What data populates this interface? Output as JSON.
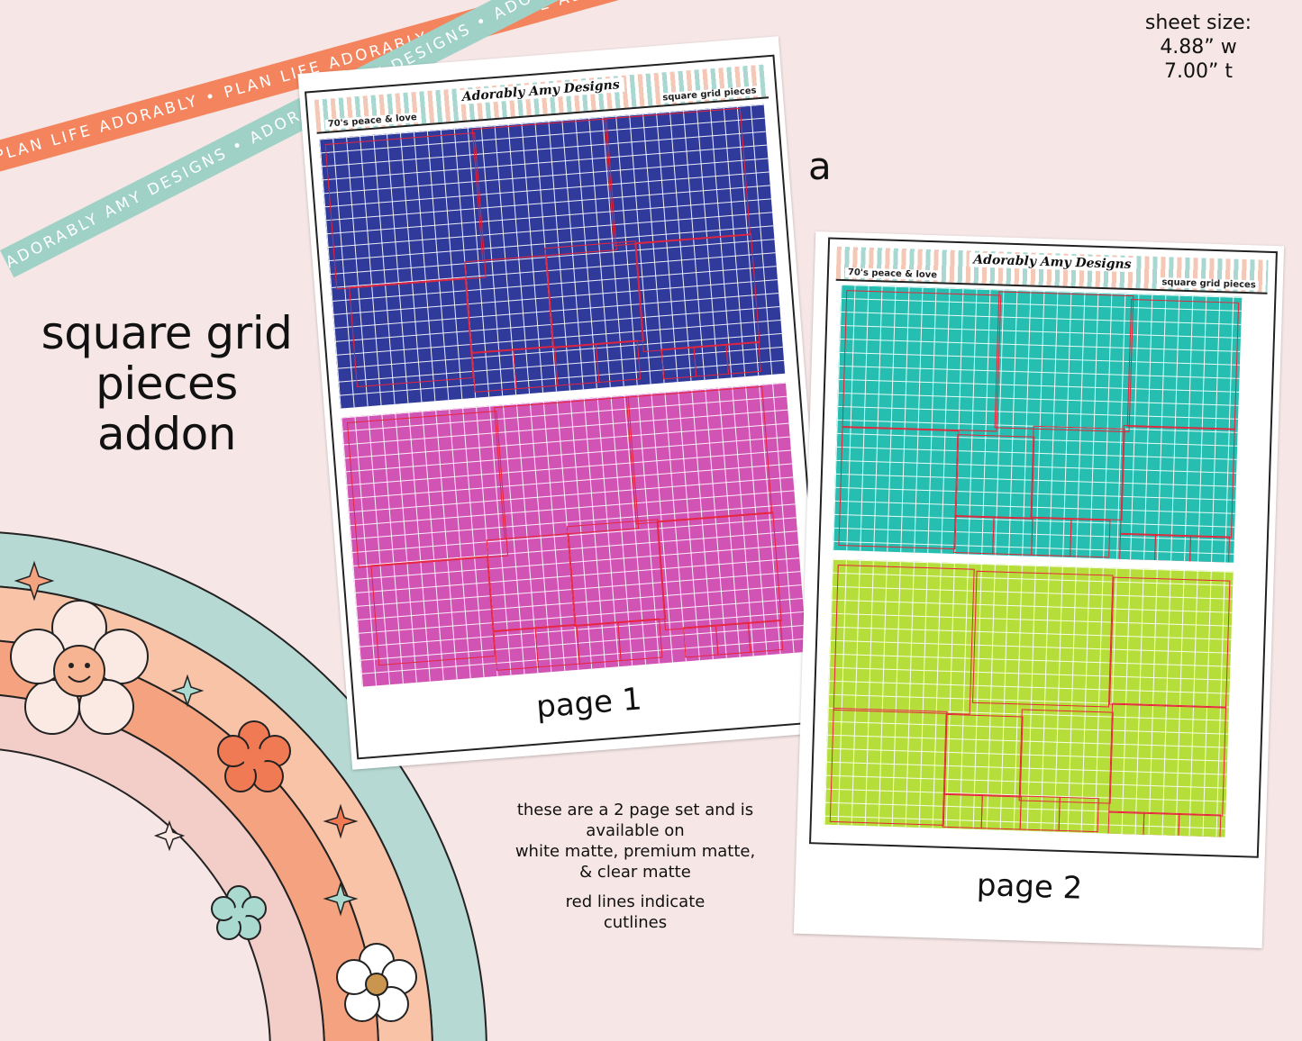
{
  "ribbons": {
    "orange_text": "PLAN LIFE ADORABLY • PLAN LIFE ADORABLY • PLAN LIFE ADORABLY •",
    "teal_text": "ADORABLY AMY DESIGNS • ADORABLY AMY DESIGNS • ADORABLY AMY DESIGNS •"
  },
  "sheet_size": {
    "line1": "sheet size:",
    "line2": "4.88” w",
    "line3": "7.00” t"
  },
  "title": {
    "line1": "square grid",
    "line2": "pieces",
    "line3": "addon"
  },
  "variant_letter": "a",
  "page1": {
    "header_left": "70's peace & love",
    "header_brand": "Adorably Amy Designs",
    "header_right": "square grid pieces",
    "label": "page 1",
    "top_color": "#2f3a9a",
    "bottom_color": "#d154b4"
  },
  "page2": {
    "header_left": "70's peace & love",
    "header_brand": "Adorably Amy Designs",
    "header_right": "square grid pieces",
    "label": "page 2",
    "top_color": "#26beb0",
    "bottom_color": "#b5de3b"
  },
  "notes": {
    "line1": "these are a 2 page set and is",
    "line2": "available on",
    "line3": "white matte, premium matte,",
    "line4": "& clear matte",
    "line5": "red lines indicate",
    "line6": "cutlines"
  },
  "colors": {
    "background": "#f6e7e6",
    "ribbon_orange": "#f3845d",
    "ribbon_teal": "#9fd1c6",
    "cutline": "#e8243b"
  }
}
